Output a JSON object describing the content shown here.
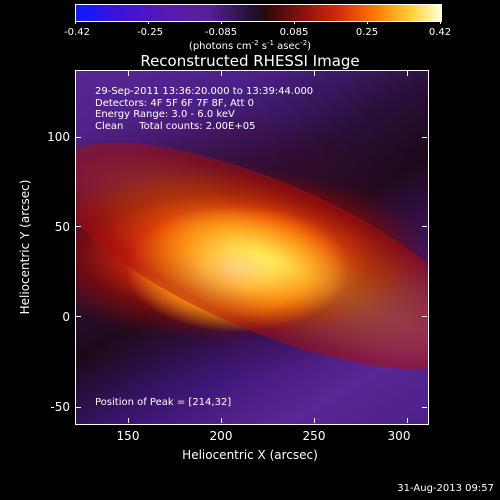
{
  "colorbar": {
    "labels": [
      "-0.42",
      "-0.25",
      "-0.085",
      "0.085",
      "0.25",
      "0.42"
    ],
    "units_prefix": "(photons cm",
    "units_exp1": "-2",
    "units_mid": " s",
    "units_exp2": "-1",
    "units_mid2": " asec",
    "units_exp3": "-2",
    "units_suffix": ")"
  },
  "title": "Reconstructed RHESSI Image",
  "info": {
    "time": "29-Sep-2011 13:36:20.000 to 13:39:44.000",
    "detectors": "Detectors: 4F 5F 6F 7F 8F, Att 0",
    "energy": "Energy Range: 3.0 - 6.0 keV",
    "clean": "Clean     Total counts: 2.00E+05"
  },
  "peak_text": "Position of Peak = [214,32]",
  "axes": {
    "xlabel": "Heliocentric X (arcsec)",
    "ylabel": "Heliocentric Y (arcsec)",
    "xticks": [
      "150",
      "200",
      "250",
      "300"
    ],
    "yticks": [
      "100",
      "50",
      "0",
      "-50"
    ]
  },
  "footer": "31-Aug-2013 09:57"
}
